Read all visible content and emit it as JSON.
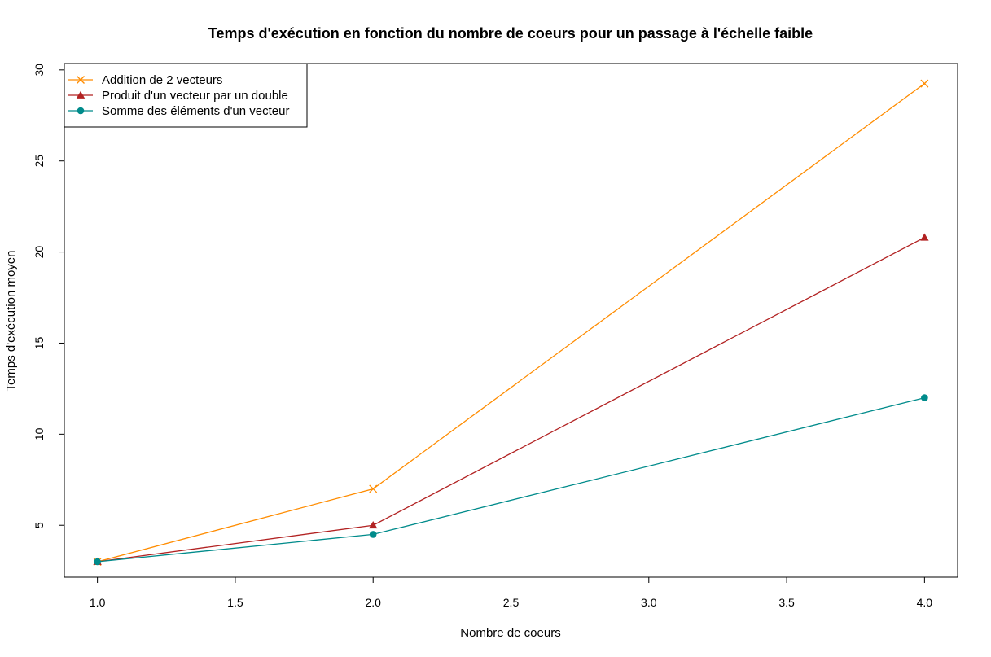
{
  "chart_data": {
    "type": "line",
    "title": "Temps d'exécution en fonction du nombre de coeurs pour un passage à l'échelle faible",
    "xlabel": "Nombre de coeurs",
    "ylabel": "Temps d'exécution moyen",
    "xlim": [
      0.88,
      4.12
    ],
    "ylim": [
      2.15,
      30.35
    ],
    "xticks": [
      "1.0",
      "1.5",
      "2.0",
      "2.5",
      "3.0",
      "3.5",
      "4.0"
    ],
    "yticks": [
      "5",
      "10",
      "15",
      "20",
      "25",
      "30"
    ],
    "x": [
      1,
      2,
      4
    ],
    "grid": false,
    "legend_position": "top-left",
    "series": [
      {
        "name": "Addition de 2 vecteurs",
        "values": [
          3.0,
          7.0,
          29.25
        ],
        "color": "#ff8c00",
        "marker": "x"
      },
      {
        "name": "Produit d'un vecteur par un double",
        "values": [
          3.0,
          5.0,
          20.8
        ],
        "color": "#b22222",
        "marker": "triangle"
      },
      {
        "name": "Somme des éléments d'un vecteur",
        "values": [
          3.0,
          4.5,
          12.0
        ],
        "color": "#008b8b",
        "marker": "circle"
      }
    ]
  }
}
